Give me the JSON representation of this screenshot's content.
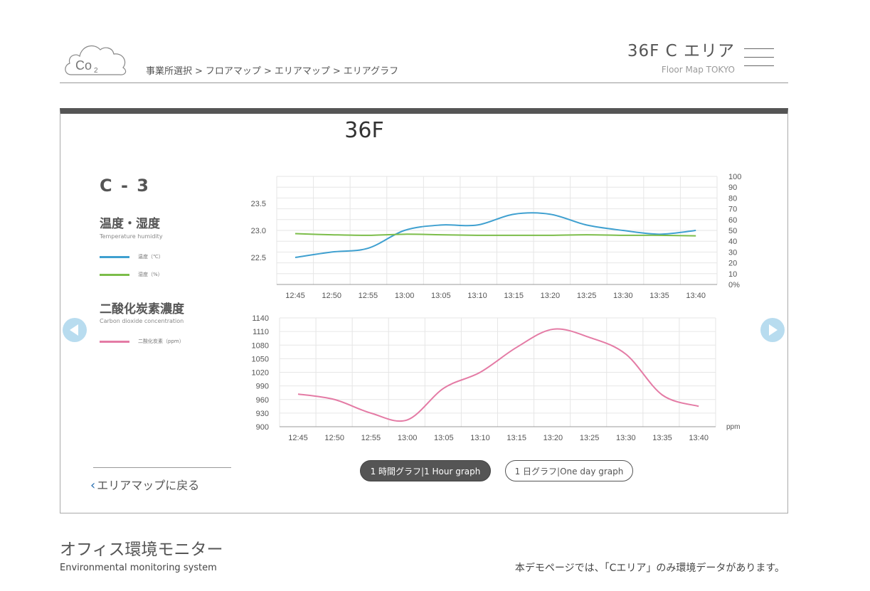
{
  "logo": {
    "text": "Co",
    "subscript": "2"
  },
  "breadcrumb": [
    "事業所選択",
    "フロアマップ",
    "エリアマップ",
    "エリアグラフ"
  ],
  "breadcrumb_separator": ">",
  "header": {
    "area_title": "36F  C  エリア",
    "area_subtitle": "Floor Map TOKYO"
  },
  "panel": {
    "floor_title": "36F",
    "section_id": "C - 3",
    "temp_heading": "温度・湿度",
    "temp_sub": "Temperature humidity",
    "legend_temp": "温度（℃）",
    "legend_hum": "湿度（%）",
    "co2_heading": "二酸化炭素濃度",
    "co2_sub": "Carbon dioxide concentration",
    "legend_co2": "二酸化炭素（ppm）",
    "back_link": "エリアマップに戻る"
  },
  "buttons": {
    "hour": "1 時間グラフ|1 Hour graph",
    "day": "1 日グラフ|One day graph"
  },
  "footer": {
    "title": "オフィス環境モニター",
    "subtitle": "Environmental monitoring system",
    "note": "本デモページでは、「Cエリア」のみ環境データがあります。"
  },
  "colors": {
    "temperature": "#3fa0d0",
    "humidity": "#7cbd4a",
    "co2": "#e47ba5",
    "nav_arrow": "#b8dcef",
    "panel_bar": "#555555"
  },
  "chart_data": [
    {
      "type": "line",
      "categories": [
        "12:45",
        "12:50",
        "12:55",
        "13:00",
        "13:05",
        "13:10",
        "13:15",
        "13:20",
        "13:25",
        "13:30",
        "13:35",
        "13:40"
      ],
      "series": [
        {
          "name": "温度（℃）",
          "axis": "left",
          "values": [
            22.5,
            22.6,
            22.67,
            23.0,
            23.1,
            23.1,
            23.3,
            23.3,
            23.1,
            23.0,
            22.93,
            23.0
          ]
        },
        {
          "name": "湿度（%）",
          "axis": "right",
          "values": [
            47,
            46,
            45.5,
            46.5,
            46,
            45.5,
            45.5,
            45.5,
            46,
            45.5,
            45.5,
            45
          ]
        }
      ],
      "y_left": {
        "ticks": [
          "23.5",
          "23.0",
          "22.5"
        ],
        "range": [
          22.0,
          24.0
        ]
      },
      "y_right": {
        "ticks": [
          "100",
          "90",
          "80",
          "70",
          "60",
          "50",
          "40",
          "30",
          "20",
          "10",
          "0%"
        ],
        "range": [
          0,
          100
        ]
      },
      "grid": true
    },
    {
      "type": "line",
      "categories": [
        "12:45",
        "12:50",
        "12:55",
        "13:00",
        "13:05",
        "13:10",
        "13:15",
        "13:20",
        "13:25",
        "13:30",
        "13:35",
        "13:40"
      ],
      "series": [
        {
          "name": "二酸化炭素（ppm）",
          "values": [
            972,
            960,
            930,
            915,
            985,
            1020,
            1075,
            1115,
            1097,
            1060,
            970,
            945
          ]
        }
      ],
      "y": {
        "ticks": [
          "1140",
          "1110",
          "1080",
          "1050",
          "1020",
          "990",
          "960",
          "930",
          "900"
        ],
        "range": [
          900,
          1140
        ]
      },
      "unit_label": "ppm",
      "grid": true
    }
  ]
}
